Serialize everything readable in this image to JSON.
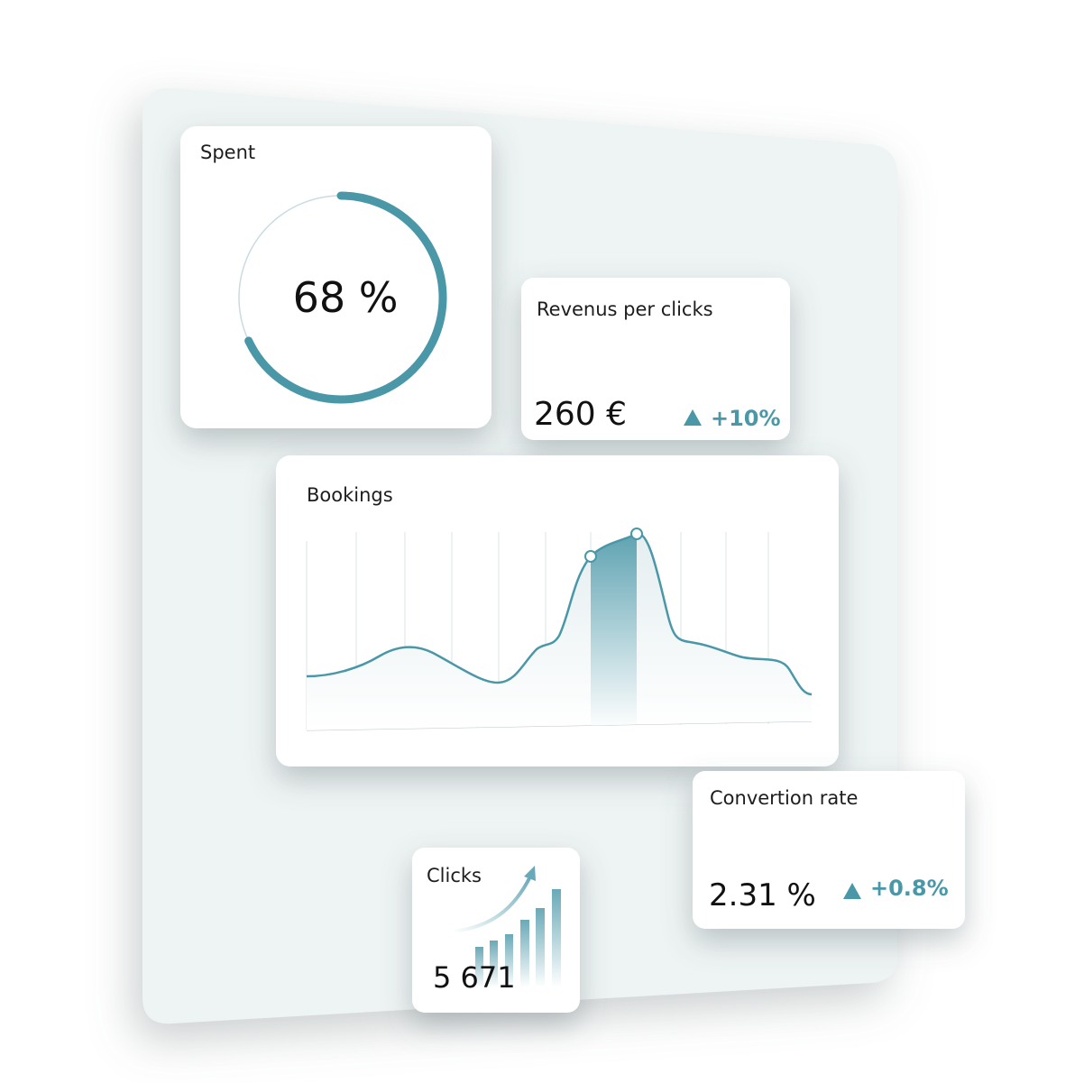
{
  "spent": {
    "title": "Spent",
    "percent": {
      "value": 68,
      "label": "68 %"
    }
  },
  "revenue": {
    "title": "Revenus per clicks",
    "value": "260 €",
    "change": "+10%"
  },
  "bookings": {
    "title": "Bookings"
  },
  "conversion": {
    "title": "Convertion rate",
    "value": "2.31 %",
    "change": "+0.8%"
  },
  "clicks": {
    "title": "Clicks",
    "value": "5 671"
  }
}
